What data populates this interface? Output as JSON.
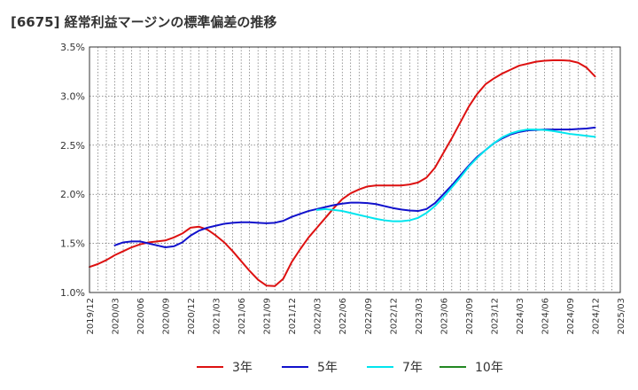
{
  "title": "[6675]  経常利益マージンの標準偏差の推移",
  "chart_data": {
    "type": "line",
    "title": "[6675]  経常利益マージンの標準偏差の推移",
    "xlabel": "",
    "ylabel": "",
    "ylim": [
      1.0,
      3.5
    ],
    "yticks": [
      "1.0%",
      "1.5%",
      "2.0%",
      "2.5%",
      "3.0%",
      "3.5%"
    ],
    "xticks": [
      "2019/12",
      "2020/03",
      "2020/06",
      "2020/09",
      "2020/12",
      "2021/03",
      "2021/06",
      "2021/09",
      "2021/12",
      "2022/03",
      "2022/06",
      "2022/09",
      "2022/12",
      "2023/03",
      "2023/06",
      "2023/09",
      "2023/12",
      "2024/03",
      "2024/06",
      "2024/09",
      "2024/12",
      "2025/03"
    ],
    "grid": true,
    "legend_position": "bottom",
    "series": [
      {
        "name": "3年",
        "color": "#dd1111",
        "points": [
          [
            "2019/12",
            1.26
          ],
          [
            "2020/01",
            1.29
          ],
          [
            "2020/02",
            1.33
          ],
          [
            "2020/03",
            1.38
          ],
          [
            "2020/04",
            1.42
          ],
          [
            "2020/05",
            1.46
          ],
          [
            "2020/06",
            1.49
          ],
          [
            "2020/07",
            1.51
          ],
          [
            "2020/08",
            1.52
          ],
          [
            "2020/09",
            1.53
          ],
          [
            "2020/10",
            1.56
          ],
          [
            "2020/11",
            1.6
          ],
          [
            "2020/12",
            1.66
          ],
          [
            "2021/01",
            1.67
          ],
          [
            "2021/02",
            1.64
          ],
          [
            "2021/03",
            1.58
          ],
          [
            "2021/04",
            1.51
          ],
          [
            "2021/05",
            1.42
          ],
          [
            "2021/06",
            1.32
          ],
          [
            "2021/07",
            1.22
          ],
          [
            "2021/08",
            1.13
          ],
          [
            "2021/09",
            1.07
          ],
          [
            "2021/10",
            1.065
          ],
          [
            "2021/11",
            1.14
          ],
          [
            "2021/12",
            1.31
          ],
          [
            "2022/01",
            1.44
          ],
          [
            "2022/02",
            1.56
          ],
          [
            "2022/03",
            1.66
          ],
          [
            "2022/04",
            1.76
          ],
          [
            "2022/05",
            1.86
          ],
          [
            "2022/06",
            1.95
          ],
          [
            "2022/07",
            2.01
          ],
          [
            "2022/08",
            2.05
          ],
          [
            "2022/09",
            2.08
          ],
          [
            "2022/10",
            2.09
          ],
          [
            "2022/11",
            2.09
          ],
          [
            "2022/12",
            2.09
          ],
          [
            "2023/01",
            2.09
          ],
          [
            "2023/02",
            2.1
          ],
          [
            "2023/03",
            2.12
          ],
          [
            "2023/04",
            2.17
          ],
          [
            "2023/05",
            2.27
          ],
          [
            "2023/06",
            2.42
          ],
          [
            "2023/07",
            2.57
          ],
          [
            "2023/08",
            2.73
          ],
          [
            "2023/09",
            2.89
          ],
          [
            "2023/10",
            3.02
          ],
          [
            "2023/11",
            3.12
          ],
          [
            "2023/12",
            3.18
          ],
          [
            "2024/01",
            3.23
          ],
          [
            "2024/02",
            3.27
          ],
          [
            "2024/03",
            3.31
          ],
          [
            "2024/04",
            3.33
          ],
          [
            "2024/05",
            3.35
          ],
          [
            "2024/06",
            3.36
          ],
          [
            "2024/07",
            3.365
          ],
          [
            "2024/08",
            3.365
          ],
          [
            "2024/09",
            3.36
          ],
          [
            "2024/10",
            3.34
          ],
          [
            "2024/11",
            3.29
          ],
          [
            "2024/12",
            3.2
          ]
        ]
      },
      {
        "name": "5年",
        "color": "#1111cc",
        "points": [
          [
            "2020/03",
            1.48
          ],
          [
            "2020/04",
            1.51
          ],
          [
            "2020/05",
            1.52
          ],
          [
            "2020/06",
            1.52
          ],
          [
            "2020/07",
            1.5
          ],
          [
            "2020/08",
            1.48
          ],
          [
            "2020/09",
            1.46
          ],
          [
            "2020/10",
            1.47
          ],
          [
            "2020/11",
            1.51
          ],
          [
            "2020/12",
            1.58
          ],
          [
            "2021/01",
            1.63
          ],
          [
            "2021/02",
            1.66
          ],
          [
            "2021/03",
            1.68
          ],
          [
            "2021/04",
            1.7
          ],
          [
            "2021/05",
            1.71
          ],
          [
            "2021/06",
            1.715
          ],
          [
            "2021/07",
            1.715
          ],
          [
            "2021/08",
            1.71
          ],
          [
            "2021/09",
            1.705
          ],
          [
            "2021/10",
            1.71
          ],
          [
            "2021/11",
            1.73
          ],
          [
            "2021/12",
            1.77
          ],
          [
            "2022/01",
            1.8
          ],
          [
            "2022/02",
            1.83
          ],
          [
            "2022/03",
            1.85
          ],
          [
            "2022/04",
            1.87
          ],
          [
            "2022/05",
            1.89
          ],
          [
            "2022/06",
            1.905
          ],
          [
            "2022/07",
            1.915
          ],
          [
            "2022/08",
            1.915
          ],
          [
            "2022/09",
            1.91
          ],
          [
            "2022/10",
            1.9
          ],
          [
            "2022/11",
            1.88
          ],
          [
            "2022/12",
            1.86
          ],
          [
            "2023/01",
            1.845
          ],
          [
            "2023/02",
            1.835
          ],
          [
            "2023/03",
            1.83
          ],
          [
            "2023/04",
            1.85
          ],
          [
            "2023/05",
            1.91
          ],
          [
            "2023/06",
            2.0
          ],
          [
            "2023/07",
            2.09
          ],
          [
            "2023/08",
            2.19
          ],
          [
            "2023/09",
            2.29
          ],
          [
            "2023/10",
            2.38
          ],
          [
            "2023/11",
            2.45
          ],
          [
            "2023/12",
            2.52
          ],
          [
            "2024/01",
            2.57
          ],
          [
            "2024/02",
            2.61
          ],
          [
            "2024/03",
            2.635
          ],
          [
            "2024/04",
            2.65
          ],
          [
            "2024/05",
            2.655
          ],
          [
            "2024/06",
            2.66
          ],
          [
            "2024/07",
            2.66
          ],
          [
            "2024/08",
            2.66
          ],
          [
            "2024/09",
            2.66
          ],
          [
            "2024/10",
            2.665
          ],
          [
            "2024/11",
            2.67
          ],
          [
            "2024/12",
            2.68
          ]
        ]
      },
      {
        "name": "7年",
        "color": "#00e5ee",
        "points": [
          [
            "2022/03",
            1.84
          ],
          [
            "2022/04",
            1.85
          ],
          [
            "2022/05",
            1.84
          ],
          [
            "2022/06",
            1.83
          ],
          [
            "2022/07",
            1.81
          ],
          [
            "2022/08",
            1.79
          ],
          [
            "2022/09",
            1.77
          ],
          [
            "2022/10",
            1.75
          ],
          [
            "2022/11",
            1.735
          ],
          [
            "2022/12",
            1.725
          ],
          [
            "2023/01",
            1.725
          ],
          [
            "2023/02",
            1.735
          ],
          [
            "2023/03",
            1.76
          ],
          [
            "2023/04",
            1.81
          ],
          [
            "2023/05",
            1.88
          ],
          [
            "2023/06",
            1.97
          ],
          [
            "2023/07",
            2.07
          ],
          [
            "2023/08",
            2.17
          ],
          [
            "2023/09",
            2.28
          ],
          [
            "2023/10",
            2.37
          ],
          [
            "2023/11",
            2.45
          ],
          [
            "2023/12",
            2.52
          ],
          [
            "2024/01",
            2.58
          ],
          [
            "2024/02",
            2.62
          ],
          [
            "2024/03",
            2.645
          ],
          [
            "2024/04",
            2.66
          ],
          [
            "2024/05",
            2.66
          ],
          [
            "2024/06",
            2.655
          ],
          [
            "2024/07",
            2.645
          ],
          [
            "2024/08",
            2.63
          ],
          [
            "2024/09",
            2.615
          ],
          [
            "2024/10",
            2.605
          ],
          [
            "2024/11",
            2.595
          ],
          [
            "2024/12",
            2.585
          ]
        ]
      },
      {
        "name": "10年",
        "color": "#228822",
        "points": []
      }
    ]
  }
}
